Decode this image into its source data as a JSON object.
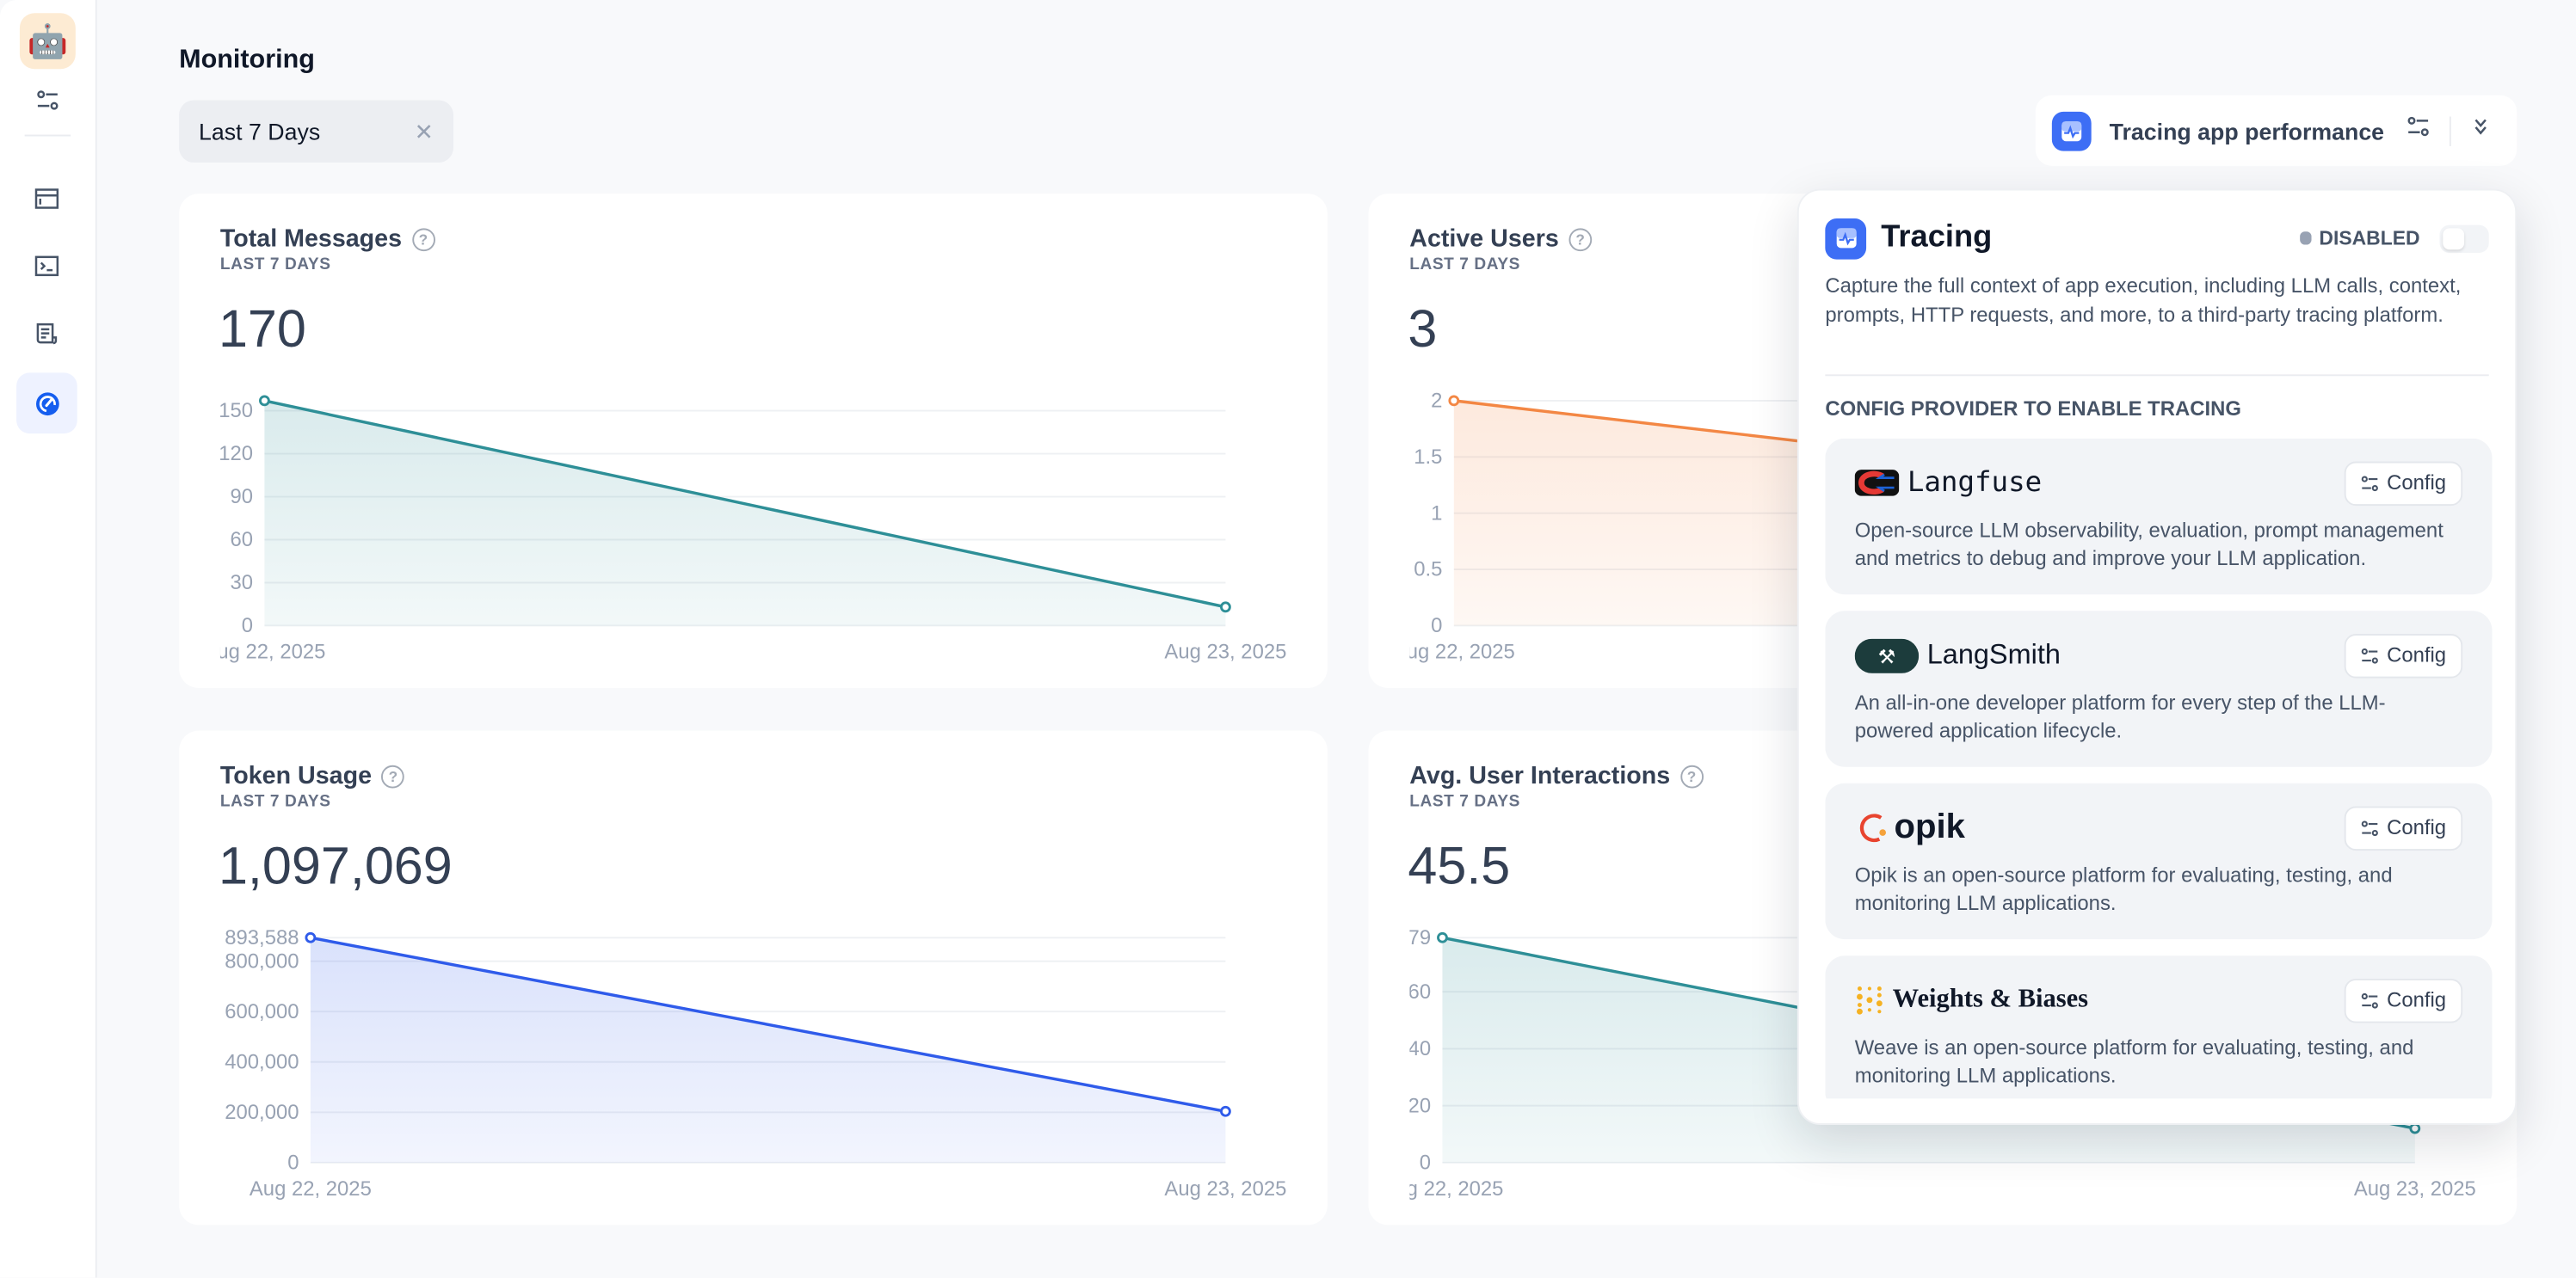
{
  "page": {
    "title": "Monitoring"
  },
  "filter": {
    "value": "Last 7 Days"
  },
  "sidebar": {
    "items": [
      "app-icon",
      "settings",
      "overview",
      "api-access",
      "logs",
      "monitoring"
    ],
    "active": "monitoring",
    "accent": "#155eef"
  },
  "header_button": {
    "label": "Tracing app performance"
  },
  "tracing_panel": {
    "title": "Tracing",
    "status": "DISABLED",
    "enabled": false,
    "description": "Capture the full context of app execution, including LLM calls, context, prompts, HTTP requests, and more, to a third-party tracing platform.",
    "section_label": "CONFIG PROVIDER TO ENABLE TRACING",
    "providers": [
      {
        "name": "Langfuse",
        "config_label": "Config",
        "description": "Open-source LLM observability, evaluation, prompt management and metrics to debug and improve your LLM application."
      },
      {
        "name": "LangSmith",
        "config_label": "Config",
        "description": "An all-in-one developer platform for every step of the LLM-powered application lifecycle."
      },
      {
        "name": "opik",
        "config_label": "Config",
        "description": "Opik is an open-source platform for evaluating, testing, and monitoring LLM applications."
      },
      {
        "name": "Weights & Biases",
        "config_label": "Config",
        "description": "Weave is an open-source platform for evaluating, testing, and monitoring LLM applications."
      }
    ]
  },
  "cards": [
    {
      "title": "Total Messages",
      "subtitle": "LAST 7 DAYS",
      "value": "170"
    },
    {
      "title": "Active Users",
      "subtitle": "LAST 7 DAYS",
      "value": "3"
    },
    {
      "title": "Token Usage",
      "subtitle": "LAST 7 DAYS",
      "value": "1,097,069"
    },
    {
      "title": "Avg. User Interactions",
      "subtitle": "LAST 7 DAYS",
      "value": "45.5"
    }
  ],
  "chart_data": [
    {
      "type": "area",
      "x": [
        "Aug 22, 2025",
        "Aug 23, 2025"
      ],
      "values": [
        157,
        13
      ],
      "ylim": [
        0,
        157
      ],
      "yticks": [
        "0",
        "30",
        "60",
        "90",
        "120",
        "150"
      ],
      "ytick_values": [
        0,
        30,
        60,
        90,
        120,
        150
      ],
      "grid": true,
      "color": "#2e8f97"
    },
    {
      "type": "area",
      "x": [
        "Aug 22, 2025",
        "Aug 23, 2025"
      ],
      "values": [
        2,
        1
      ],
      "ylim": [
        0,
        2
      ],
      "yticks": [
        "0",
        "0.5",
        "1",
        "1.5",
        "2"
      ],
      "ytick_values": [
        0,
        0.5,
        1,
        1.5,
        2
      ],
      "grid": true,
      "color": "#f38744"
    },
    {
      "type": "area",
      "x": [
        "Aug 22, 2025",
        "Aug 23, 2025"
      ],
      "values": [
        893588,
        203481
      ],
      "ylim": [
        0,
        893588
      ],
      "yticks": [
        "0",
        "200,000",
        "400,000",
        "600,000",
        "800,000",
        "893,588"
      ],
      "ytick_values": [
        0,
        200000,
        400000,
        600000,
        800000,
        893588
      ],
      "grid": true,
      "color": "#2f5bea"
    },
    {
      "type": "area",
      "x": [
        "Aug 22, 2025",
        "Aug 23, 2025"
      ],
      "values": [
        79,
        12
      ],
      "ylim": [
        0,
        79
      ],
      "yticks": [
        "0",
        "20",
        "40",
        "60",
        "79"
      ],
      "ytick_values": [
        0,
        20,
        40,
        60,
        79
      ],
      "grid": true,
      "color": "#2e8f97"
    }
  ]
}
